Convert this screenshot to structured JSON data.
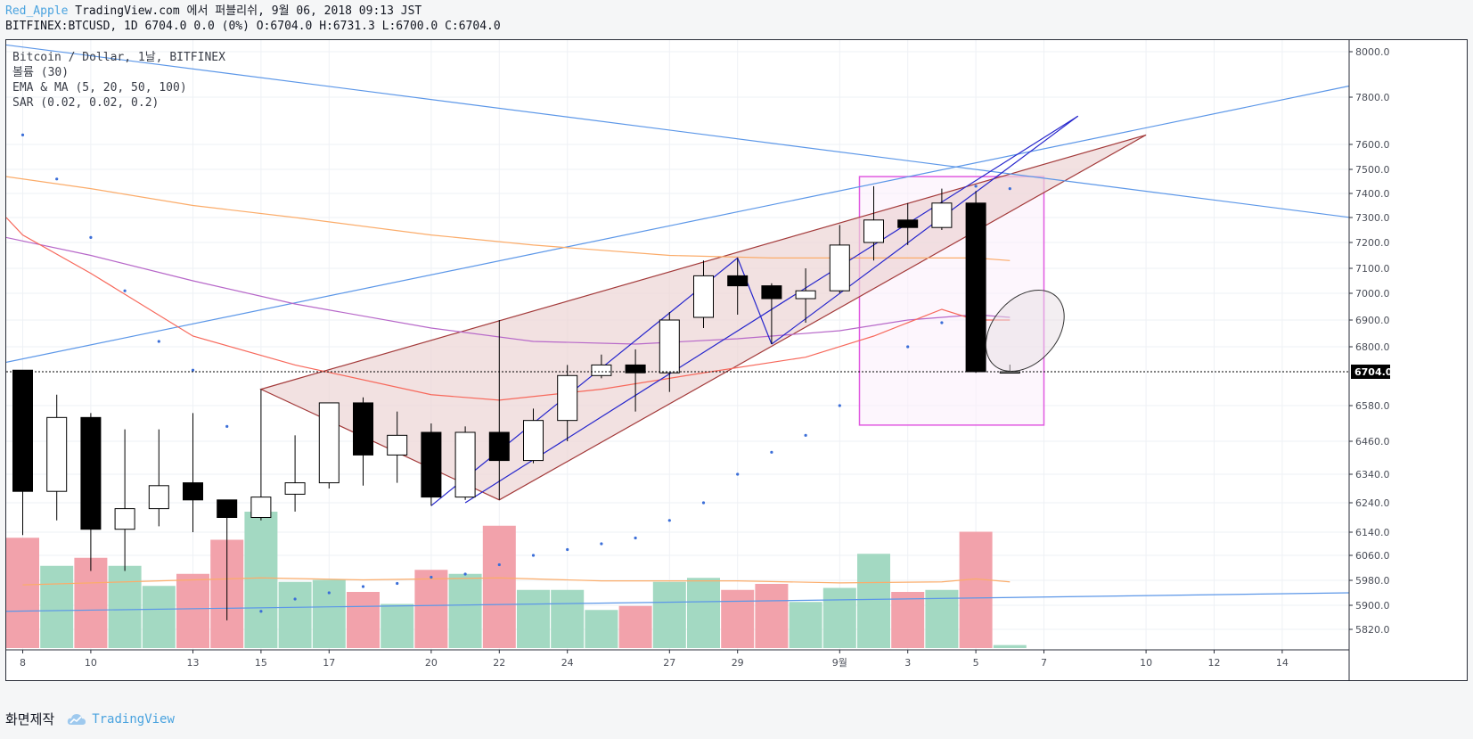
{
  "header": {
    "author": "Red_Apple",
    "published": "TradingView.com 에서 퍼블리쉬, 9월 06, 2018 09:13 JST",
    "symbol_line": "BITFINEX:BTCUSD, 1D 6704.0 0.0 (0%) O:6704.0 H:6731.3 L:6700.0 C:6704.0"
  },
  "legend": [
    "Bitcoin / Dollar, 1날, BITFINEX",
    "볼륨 (30)",
    "EMA & MA (5, 20, 50, 100)",
    "SAR (0.02, 0.02, 0.2)"
  ],
  "footer": {
    "made_with": "화면제작",
    "brand": "TradingView"
  },
  "colors": {
    "up_body": "#ffffff",
    "down_body": "#000000",
    "vol_up": "#a3d9c2",
    "vol_down": "#f2a2ab",
    "ema_red": "#f7685b",
    "ma_purple": "#b768c9",
    "ema_orange": "#fbac6a",
    "trend_blue": "#5c97e8",
    "wedge": "#a33a3a",
    "wedge_fill": "#ecd4d4",
    "blue_line": "#2525cc",
    "box": "#e05ae0",
    "box_fill": "#fbeefb",
    "sar": "#3b6ed8",
    "last_price": "#000000"
  },
  "chart_data": {
    "type": "candlestick",
    "symbol": "BITFINEX:BTCUSD",
    "timeframe": "1D",
    "y_axis_ticks": [
      8000,
      7800,
      7600,
      7500,
      7400,
      7300,
      7200,
      7100,
      7000,
      6900,
      6800,
      6700,
      6580,
      6460,
      6340,
      6240,
      6140,
      6060,
      5980,
      5900,
      5820
    ],
    "y_axis_tick_labels": [
      "8000.0",
      "7800.0",
      "7600.0",
      "7500.0",
      "7400.0",
      "7300.0",
      "7200.0",
      "7100.0",
      "7000.0",
      "6900.0",
      "6800.0",
      "",
      "6580.0",
      "6460.0",
      "6340.0",
      "6240.0",
      "6140.0",
      "6060.0",
      "5980.0",
      "5900.0",
      "5820.0"
    ],
    "last_price_label": "6704.0",
    "last_price": 6704.0,
    "x_axis_labels": [
      {
        "day": 0,
        "label": "8"
      },
      {
        "day": 2,
        "label": "10"
      },
      {
        "day": 5,
        "label": "13"
      },
      {
        "day": 7,
        "label": "15"
      },
      {
        "day": 9,
        "label": "17"
      },
      {
        "day": 12,
        "label": "20"
      },
      {
        "day": 14,
        "label": "22"
      },
      {
        "day": 16,
        "label": "24"
      },
      {
        "day": 19,
        "label": "27"
      },
      {
        "day": 21,
        "label": "29"
      },
      {
        "day": 24,
        "label": "9월"
      },
      {
        "day": 26,
        "label": "3"
      },
      {
        "day": 28,
        "label": "5"
      },
      {
        "day": 30,
        "label": "7"
      },
      {
        "day": 33,
        "label": "10"
      },
      {
        "day": 35,
        "label": "12"
      },
      {
        "day": 37,
        "label": "14"
      }
    ],
    "candles": [
      {
        "day": 0,
        "o": 6710,
        "h": 6710,
        "l": 6130,
        "c": 6280
      },
      {
        "day": 1,
        "o": 6280,
        "h": 6620,
        "l": 6180,
        "c": 6540
      },
      {
        "day": 2,
        "o": 6540,
        "h": 6555,
        "l": 6010,
        "c": 6150
      },
      {
        "day": 3,
        "o": 6150,
        "h": 6500,
        "l": 6010,
        "c": 6220
      },
      {
        "day": 4,
        "o": 6220,
        "h": 6500,
        "l": 6160,
        "c": 6300
      },
      {
        "day": 5,
        "o": 6310,
        "h": 6555,
        "l": 6140,
        "c": 6250
      },
      {
        "day": 6,
        "o": 6250,
        "h": 6250,
        "l": 5850,
        "c": 6190
      },
      {
        "day": 7,
        "o": 6190,
        "h": 6640,
        "l": 6180,
        "c": 6260
      },
      {
        "day": 8,
        "o": 6270,
        "h": 6480,
        "l": 6210,
        "c": 6310
      },
      {
        "day": 9,
        "o": 6310,
        "h": 6590,
        "l": 6290,
        "c": 6590
      },
      {
        "day": 10,
        "o": 6590,
        "h": 6610,
        "l": 6300,
        "c": 6410
      },
      {
        "day": 11,
        "o": 6410,
        "h": 6560,
        "l": 6310,
        "c": 6480
      },
      {
        "day": 12,
        "o": 6490,
        "h": 6520,
        "l": 6230,
        "c": 6260
      },
      {
        "day": 13,
        "o": 6260,
        "h": 6510,
        "l": 6250,
        "c": 6490
      },
      {
        "day": 14,
        "o": 6490,
        "h": 6900,
        "l": 6250,
        "c": 6390
      },
      {
        "day": 15,
        "o": 6390,
        "h": 6570,
        "l": 6380,
        "c": 6530
      },
      {
        "day": 16,
        "o": 6530,
        "h": 6730,
        "l": 6460,
        "c": 6690
      },
      {
        "day": 17,
        "o": 6690,
        "h": 6770,
        "l": 6680,
        "c": 6730
      },
      {
        "day": 18,
        "o": 6730,
        "h": 6790,
        "l": 6560,
        "c": 6700
      },
      {
        "day": 19,
        "o": 6700,
        "h": 6930,
        "l": 6630,
        "c": 6900
      },
      {
        "day": 20,
        "o": 6910,
        "h": 7130,
        "l": 6870,
        "c": 7070
      },
      {
        "day": 21,
        "o": 7070,
        "h": 7140,
        "l": 6920,
        "c": 7030
      },
      {
        "day": 22,
        "o": 7030,
        "h": 7040,
        "l": 6810,
        "c": 6980
      },
      {
        "day": 23,
        "o": 6980,
        "h": 7100,
        "l": 6890,
        "c": 7010
      },
      {
        "day": 24,
        "o": 7010,
        "h": 7270,
        "l": 7000,
        "c": 7190
      },
      {
        "day": 25,
        "o": 7200,
        "h": 7430,
        "l": 7130,
        "c": 7290
      },
      {
        "day": 26,
        "o": 7290,
        "h": 7360,
        "l": 7190,
        "c": 7260
      },
      {
        "day": 27,
        "o": 7260,
        "h": 7420,
        "l": 7250,
        "c": 7360
      },
      {
        "day": 28,
        "o": 7360,
        "h": 7410,
        "l": 6700,
        "c": 6704
      },
      {
        "day": 29,
        "o": 6704,
        "h": 6731.3,
        "l": 6700,
        "c": 6704
      }
    ],
    "volume": {
      "label": "볼륨 (30)",
      "values": [
        {
          "day": 0,
          "v": 5500,
          "up": false
        },
        {
          "day": 1,
          "v": 4100,
          "up": true
        },
        {
          "day": 2,
          "v": 4500,
          "up": false
        },
        {
          "day": 3,
          "v": 4100,
          "up": true
        },
        {
          "day": 4,
          "v": 3100,
          "up": true
        },
        {
          "day": 5,
          "v": 3700,
          "up": false
        },
        {
          "day": 6,
          "v": 5400,
          "up": false
        },
        {
          "day": 7,
          "v": 6800,
          "up": true
        },
        {
          "day": 8,
          "v": 3300,
          "up": true
        },
        {
          "day": 9,
          "v": 3400,
          "up": true
        },
        {
          "day": 10,
          "v": 2800,
          "up": false
        },
        {
          "day": 11,
          "v": 2200,
          "up": true
        },
        {
          "day": 12,
          "v": 3900,
          "up": false
        },
        {
          "day": 13,
          "v": 3700,
          "up": true
        },
        {
          "day": 14,
          "v": 6100,
          "up": false
        },
        {
          "day": 15,
          "v": 2900,
          "up": true
        },
        {
          "day": 16,
          "v": 2900,
          "up": true
        },
        {
          "day": 17,
          "v": 1900,
          "up": true
        },
        {
          "day": 18,
          "v": 2100,
          "up": false
        },
        {
          "day": 19,
          "v": 3300,
          "up": true
        },
        {
          "day": 20,
          "v": 3500,
          "up": true
        },
        {
          "day": 21,
          "v": 2900,
          "up": false
        },
        {
          "day": 22,
          "v": 3200,
          "up": false
        },
        {
          "day": 23,
          "v": 2300,
          "up": true
        },
        {
          "day": 24,
          "v": 3000,
          "up": true
        },
        {
          "day": 25,
          "v": 4700,
          "up": true
        },
        {
          "day": 26,
          "v": 2800,
          "up": false
        },
        {
          "day": 27,
          "v": 2900,
          "up": true
        },
        {
          "day": 28,
          "v": 5800,
          "up": false
        },
        {
          "day": 29,
          "v": 150,
          "up": true
        }
      ],
      "ma": [
        {
          "day": 0,
          "v": 3150
        },
        {
          "day": 3,
          "v": 3300
        },
        {
          "day": 7,
          "v": 3500
        },
        {
          "day": 10,
          "v": 3400
        },
        {
          "day": 14,
          "v": 3500
        },
        {
          "day": 17,
          "v": 3350
        },
        {
          "day": 21,
          "v": 3350
        },
        {
          "day": 24,
          "v": 3250
        },
        {
          "day": 27,
          "v": 3300
        },
        {
          "day": 28,
          "v": 3450
        },
        {
          "day": 29,
          "v": 3300
        }
      ]
    },
    "indicators": {
      "ema_red": [
        {
          "day": -0.5,
          "v": 7300
        },
        {
          "day": 0,
          "v": 7230
        },
        {
          "day": 2,
          "v": 7080
        },
        {
          "day": 5,
          "v": 6840
        },
        {
          "day": 8,
          "v": 6730
        },
        {
          "day": 12,
          "v": 6620
        },
        {
          "day": 14,
          "v": 6600
        },
        {
          "day": 17,
          "v": 6640
        },
        {
          "day": 20,
          "v": 6700
        },
        {
          "day": 23,
          "v": 6760
        },
        {
          "day": 25,
          "v": 6840
        },
        {
          "day": 27,
          "v": 6940
        },
        {
          "day": 28,
          "v": 6900
        },
        {
          "day": 29,
          "v": 6900
        }
      ],
      "ma_purple": [
        {
          "day": -0.5,
          "v": 7220
        },
        {
          "day": 2,
          "v": 7150
        },
        {
          "day": 5,
          "v": 7050
        },
        {
          "day": 8,
          "v": 6960
        },
        {
          "day": 12,
          "v": 6870
        },
        {
          "day": 15,
          "v": 6820
        },
        {
          "day": 18,
          "v": 6810
        },
        {
          "day": 21,
          "v": 6830
        },
        {
          "day": 24,
          "v": 6860
        },
        {
          "day": 26,
          "v": 6900
        },
        {
          "day": 28,
          "v": 6920
        },
        {
          "day": 29,
          "v": 6910
        }
      ],
      "ema_orange": [
        {
          "day": -0.5,
          "v": 7470
        },
        {
          "day": 2,
          "v": 7420
        },
        {
          "day": 5,
          "v": 7350
        },
        {
          "day": 8,
          "v": 7300
        },
        {
          "day": 12,
          "v": 7230
        },
        {
          "day": 15,
          "v": 7190
        },
        {
          "day": 19,
          "v": 7150
        },
        {
          "day": 22,
          "v": 7140
        },
        {
          "day": 25,
          "v": 7140
        },
        {
          "day": 28,
          "v": 7140
        },
        {
          "day": 29,
          "v": 7130
        }
      ],
      "sar": [
        {
          "day": 0,
          "v": 7640
        },
        {
          "day": 1,
          "v": 7460
        },
        {
          "day": 2,
          "v": 7220
        },
        {
          "day": 3,
          "v": 7010
        },
        {
          "day": 4,
          "v": 6820
        },
        {
          "day": 5,
          "v": 6710
        },
        {
          "day": 6,
          "v": 6510
        },
        {
          "day": 7,
          "v": 5880
        },
        {
          "day": 8,
          "v": 5920
        },
        {
          "day": 9,
          "v": 5940
        },
        {
          "day": 10,
          "v": 5960
        },
        {
          "day": 11,
          "v": 5970
        },
        {
          "day": 12,
          "v": 5990
        },
        {
          "day": 13,
          "v": 6000
        },
        {
          "day": 14,
          "v": 6030
        },
        {
          "day": 15,
          "v": 6060
        },
        {
          "day": 16,
          "v": 6080
        },
        {
          "day": 17,
          "v": 6100
        },
        {
          "day": 18,
          "v": 6120
        },
        {
          "day": 19,
          "v": 6180
        },
        {
          "day": 20,
          "v": 6240
        },
        {
          "day": 21,
          "v": 6340
        },
        {
          "day": 22,
          "v": 6420
        },
        {
          "day": 23,
          "v": 6480
        },
        {
          "day": 24,
          "v": 6580
        },
        {
          "day": 26,
          "v": 6800
        },
        {
          "day": 27,
          "v": 6890
        },
        {
          "day": 28,
          "v": 7430
        },
        {
          "day": 29,
          "v": 7420
        }
      ]
    },
    "drawings": {
      "rising_wedge": {
        "upper": [
          {
            "day": 7,
            "p": 6640
          },
          {
            "day": 33,
            "p": 7640
          }
        ],
        "lower": [
          {
            "day": 14,
            "p": 6250
          },
          {
            "day": 33,
            "p": 7640
          }
        ],
        "apex_left": {
          "day": 7,
          "p": 6640
        },
        "left_bottom": {
          "day": 14,
          "p": 6250
        }
      },
      "long_trendline_falling": [
        {
          "day": -0.5,
          "p": 8030
        },
        {
          "day": 39,
          "p": 7300
        }
      ],
      "long_trendline_rising": [
        {
          "day": -0.5,
          "p": 6740
        },
        {
          "day": 39,
          "p": 7850
        }
      ],
      "volume_support_line": [
        {
          "day": -0.5,
          "p": 5880
        },
        {
          "day": 39,
          "p": 5940
        }
      ],
      "blue_channel_upper": [
        {
          "day": 12,
          "p": 6230
        },
        {
          "day": 31,
          "p": 7720
        }
      ],
      "blue_channel_lower": [
        {
          "day": 12,
          "p": 6230
        },
        {
          "day": 31,
          "p": 7720
        }
      ],
      "blue_zigzag": [
        {
          "day": 12,
          "p": 6230
        },
        {
          "day": 21,
          "p": 7140
        },
        {
          "day": 22,
          "p": 6810
        }
      ],
      "highlight_box": {
        "day_from": 25,
        "day_to": 30,
        "p_from": 6600,
        "p_to": 7470
      },
      "ellipse": {
        "day": 29,
        "p": 6880
      }
    }
  }
}
